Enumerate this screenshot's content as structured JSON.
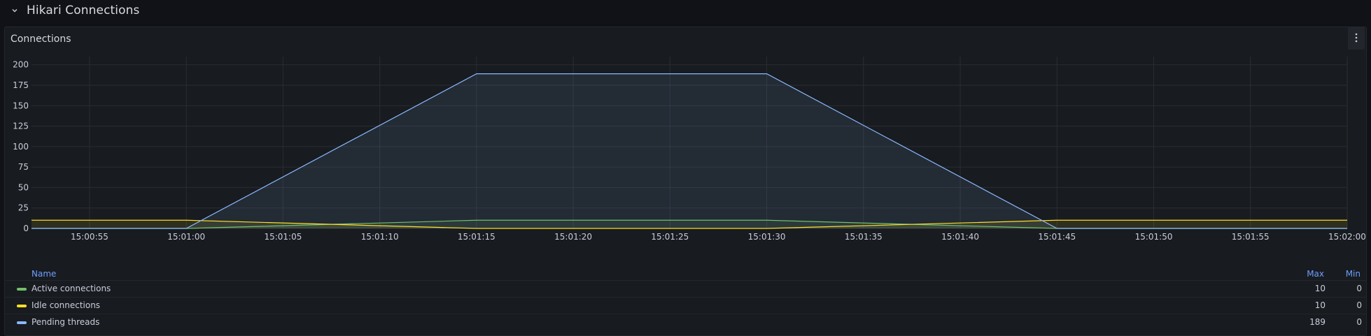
{
  "row": {
    "title": "Hikari Connections"
  },
  "panel": {
    "title": "Connections"
  },
  "chart_data": {
    "type": "line",
    "title": "Connections",
    "x": [
      "15:00:52",
      "15:01:00",
      "15:01:15",
      "15:01:30",
      "15:01:45",
      "15:02:00"
    ],
    "x_ticks": [
      "15:00:55",
      "15:01:00",
      "15:01:05",
      "15:01:10",
      "15:01:15",
      "15:01:20",
      "15:01:25",
      "15:01:30",
      "15:01:35",
      "15:01:40",
      "15:01:45",
      "15:01:50",
      "15:01:55",
      "15:02:00"
    ],
    "y_ticks": [
      0,
      25,
      50,
      75,
      100,
      125,
      150,
      175,
      200
    ],
    "ylim": [
      0,
      210
    ],
    "grid": true,
    "legend_placement": "bottom",
    "series": [
      {
        "name": "Active connections",
        "color": "#73bf69",
        "points": [
          [
            "15:00:52",
            0
          ],
          [
            "15:01:00",
            0
          ],
          [
            "15:01:15",
            10
          ],
          [
            "15:01:30",
            10
          ],
          [
            "15:01:45",
            0
          ],
          [
            "15:02:00",
            0
          ]
        ],
        "max": "10",
        "min": "0"
      },
      {
        "name": "Idle connections",
        "color": "#fade2a",
        "points": [
          [
            "15:00:52",
            10
          ],
          [
            "15:01:00",
            10
          ],
          [
            "15:01:15",
            0
          ],
          [
            "15:01:30",
            0
          ],
          [
            "15:01:45",
            10
          ],
          [
            "15:02:00",
            10
          ]
        ],
        "max": "10",
        "min": "0"
      },
      {
        "name": "Pending threads",
        "color": "#8ab8ff",
        "points": [
          [
            "15:00:52",
            0
          ],
          [
            "15:01:00",
            0
          ],
          [
            "15:01:15",
            189
          ],
          [
            "15:01:30",
            189
          ],
          [
            "15:01:45",
            0
          ],
          [
            "15:02:00",
            0
          ]
        ],
        "max": "189",
        "min": "0"
      }
    ]
  },
  "legend": {
    "col_name": "Name",
    "col_max": "Max",
    "col_min": "Min",
    "rows": [
      {
        "name": "Active connections",
        "max": "10",
        "min": "0",
        "color": "#73bf69"
      },
      {
        "name": "Idle connections",
        "max": "10",
        "min": "0",
        "color": "#fade2a"
      },
      {
        "name": "Pending threads",
        "max": "189",
        "min": "0",
        "color": "#8ab8ff"
      }
    ]
  },
  "icons": {
    "row_toggle": "chevron-down-icon",
    "panel_menu": "kebab-menu-icon"
  }
}
